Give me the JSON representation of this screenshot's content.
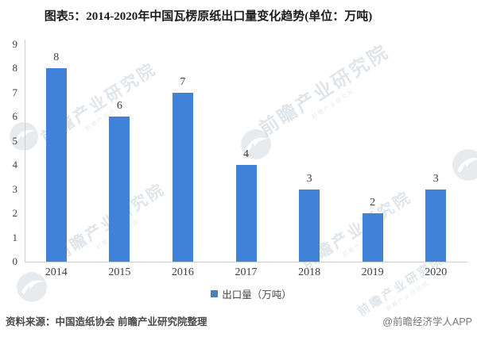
{
  "chart_data": {
    "type": "bar",
    "title": "图表5：2014-2020年中国瓦楞原纸出口量变化趋势(单位：万吨)",
    "categories": [
      "2014",
      "2015",
      "2016",
      "2017",
      "2018",
      "2019",
      "2020"
    ],
    "values": [
      8,
      6,
      7,
      4,
      3,
      2,
      3
    ],
    "series_name": "出口量（万吨）",
    "xlabel": "",
    "ylabel": "",
    "ylim": [
      0,
      9
    ],
    "ytick_step": 1,
    "grid": false,
    "legend_position": "bottom",
    "bar_color": "#4082d8",
    "legend_marker_color": "#4d7fba",
    "axis_color": "#cfcfcf",
    "label_color": "#3f3f3f"
  },
  "watermark": {
    "text": "前瞻产业研究院"
  },
  "footer": {
    "source": "资料来源：中国造纸协会 前瞻产业研究院整理",
    "credit": "@前瞻经济学人APP"
  }
}
